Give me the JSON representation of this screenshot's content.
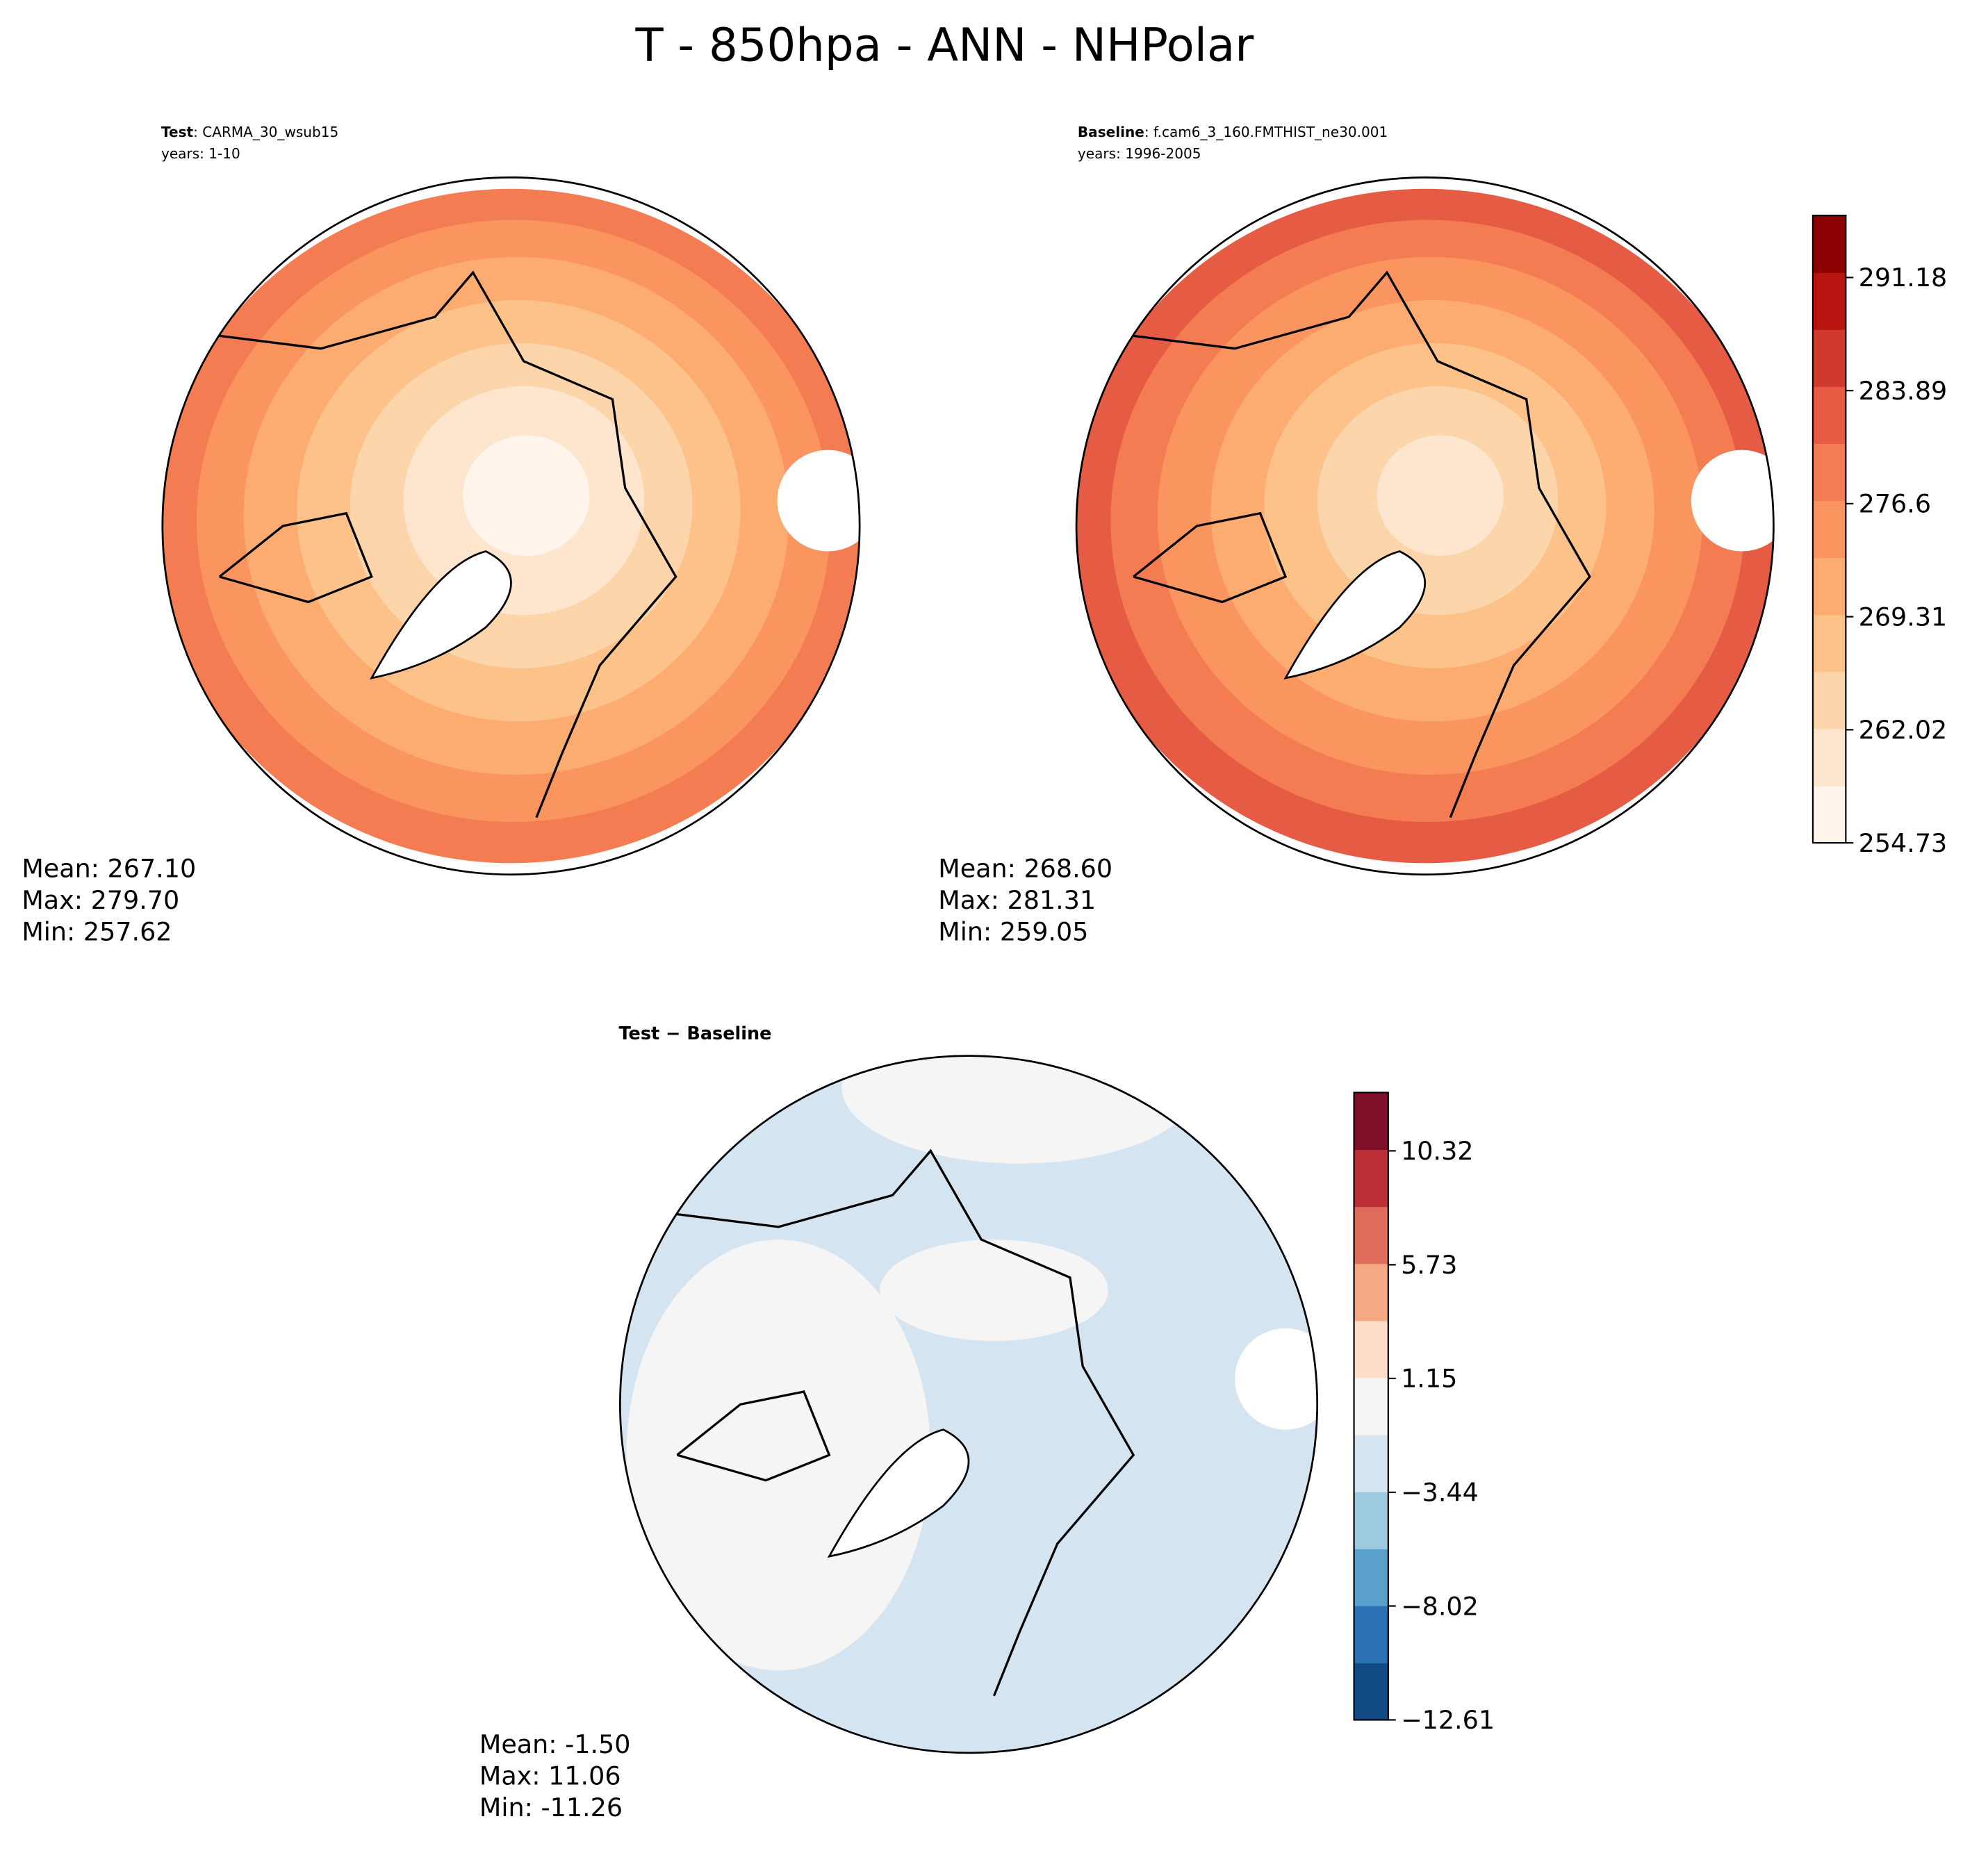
{
  "title": "T - 850hpa - ANN - NHPolar",
  "panels": [
    {
      "label_bold": "Test",
      "label_rest": ": CARMA_30_wsub15",
      "years": "years: 1-10",
      "stats": [
        "Mean: 267.10",
        "Max: 279.70",
        "Min: 257.62"
      ]
    },
    {
      "label_bold": "Baseline",
      "label_rest": ": f.cam6_3_160.FMTHIST_ne30.001",
      "years": "years: 1996-2005",
      "stats": [
        "Mean: 268.60",
        "Max: 281.31",
        "Min: 259.05"
      ]
    },
    {
      "label_bold": "Test − Baseline",
      "stats": [
        "Mean: -1.50",
        "Max: 11.06",
        "Min: -11.26"
      ]
    }
  ],
  "colorbars": [
    {
      "lim": [
        254.73,
        295.18
      ],
      "ticks": [
        254.73,
        262.02,
        269.31,
        276.6,
        283.89,
        291.18
      ],
      "colors": [
        "#fff5eb",
        "#fee6ce",
        "#fdd5ab",
        "#fdc18a",
        "#fcac70",
        "#fb9560",
        "#f47c52",
        "#e65b43",
        "#d03a2c",
        "#b8140f",
        "#8b0000"
      ]
    },
    {
      "lim": [
        -12.61,
        12.67
      ],
      "ticks": [
        {
          "value": -12.61,
          "label": "−12.61"
        },
        {
          "value": -8.02,
          "label": "−8.02"
        },
        {
          "value": -3.44,
          "label": "−3.44"
        },
        1.15,
        5.73,
        10.32
      ],
      "colors": [
        "#134b87",
        "#2b72b4",
        "#5aa0cd",
        "#9ecae1",
        "#d4e5f1",
        "#f5f5f5",
        "#fddcc9",
        "#f4a982",
        "#df6c5a",
        "#bc2f37",
        "#7f0f28"
      ]
    }
  ]
}
